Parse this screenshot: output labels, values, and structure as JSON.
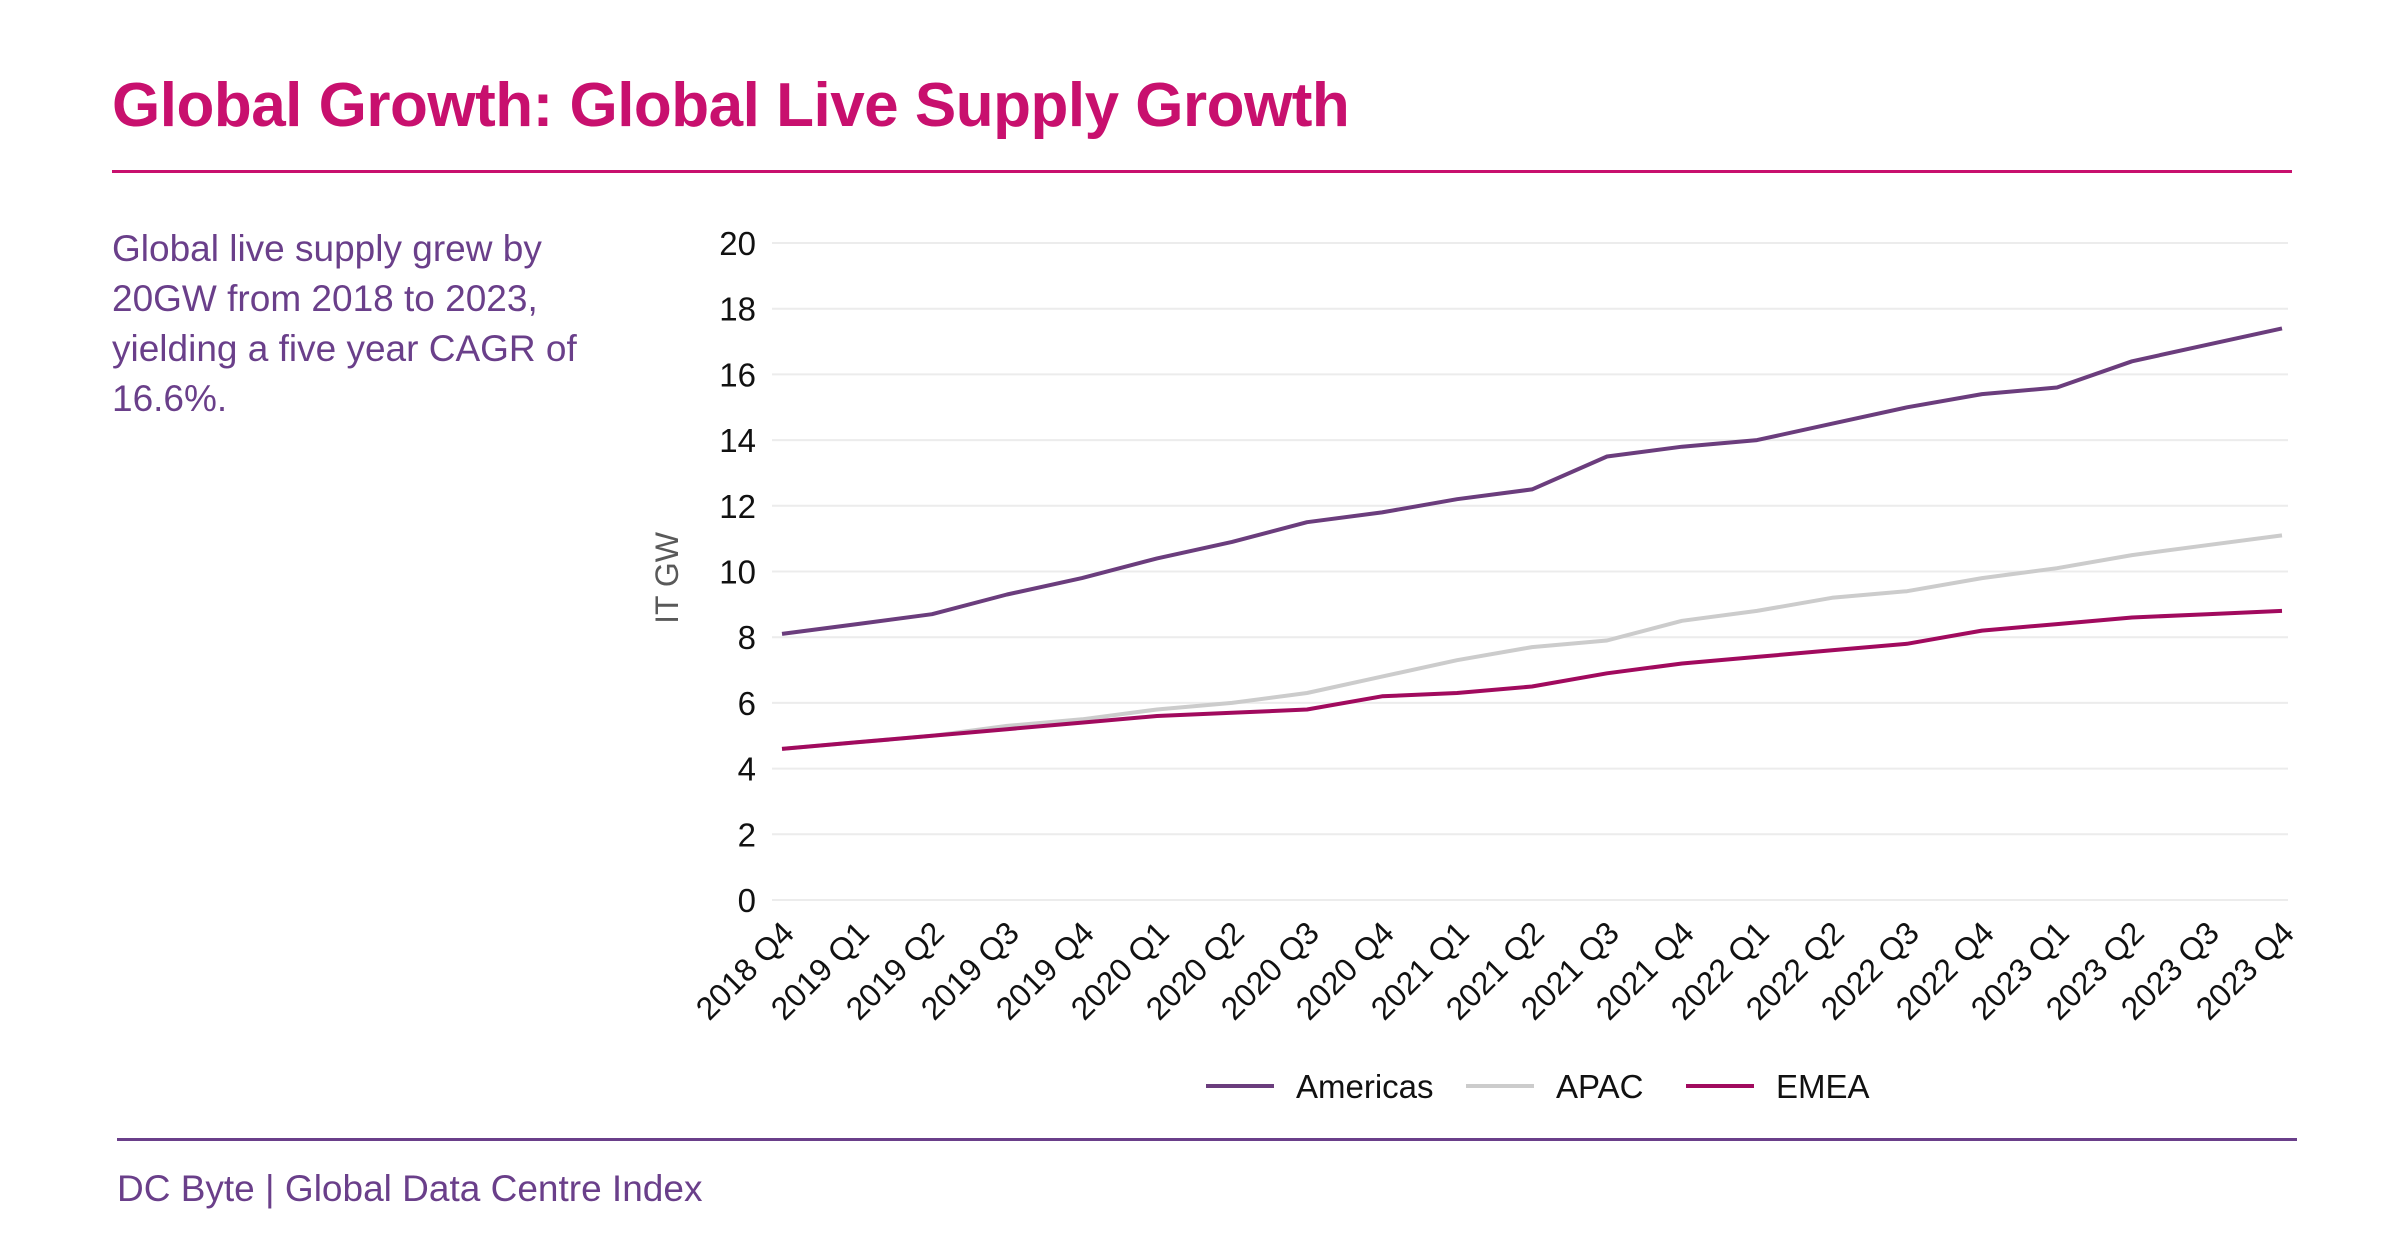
{
  "header": {
    "title": "Global Growth: Global Live Supply Growth"
  },
  "summary": "Global live supply grew by 20GW from 2018 to 2023, yielding a five year CAGR of 16.6%.",
  "footer": {
    "source": "DC Byte | Global Data Centre Index"
  },
  "colors": {
    "title": "#c8106e",
    "text": "#6a3f8a"
  },
  "chart_data": {
    "type": "line",
    "title": "",
    "xlabel": "",
    "ylabel": "IT GW",
    "ylim": [
      0,
      20
    ],
    "yticks": [
      0,
      2,
      4,
      6,
      8,
      10,
      12,
      14,
      16,
      18,
      20
    ],
    "grid": true,
    "legend_position": "bottom",
    "categories": [
      "2018 Q4",
      "2019 Q1",
      "2019 Q2",
      "2019 Q3",
      "2019 Q4",
      "2020 Q1",
      "2020 Q2",
      "2020 Q3",
      "2020 Q4",
      "2021 Q1",
      "2021 Q2",
      "2021 Q3",
      "2021 Q4",
      "2022 Q1",
      "2022 Q2",
      "2022 Q3",
      "2022 Q4",
      "2023 Q1",
      "2023 Q2",
      "2023 Q3",
      "2023 Q4"
    ],
    "series": [
      {
        "name": "Americas",
        "color": "#6b3d7d",
        "values": [
          8.1,
          8.4,
          8.7,
          9.3,
          9.8,
          10.4,
          10.9,
          11.5,
          11.8,
          12.2,
          12.5,
          13.5,
          13.8,
          14.0,
          14.5,
          15.0,
          15.4,
          15.6,
          16.4,
          16.9,
          17.4
        ]
      },
      {
        "name": "APAC",
        "color": "#cccccc",
        "values": [
          4.6,
          4.8,
          5.0,
          5.3,
          5.5,
          5.8,
          6.0,
          6.3,
          6.8,
          7.3,
          7.7,
          7.9,
          8.5,
          8.8,
          9.2,
          9.4,
          9.8,
          10.1,
          10.5,
          10.8,
          11.1
        ]
      },
      {
        "name": "EMEA",
        "color": "#a10a5e",
        "values": [
          4.6,
          4.8,
          5.0,
          5.2,
          5.4,
          5.6,
          5.7,
          5.8,
          6.2,
          6.3,
          6.5,
          6.9,
          7.2,
          7.4,
          7.6,
          7.8,
          8.2,
          8.4,
          8.6,
          8.7,
          8.8
        ]
      }
    ]
  }
}
